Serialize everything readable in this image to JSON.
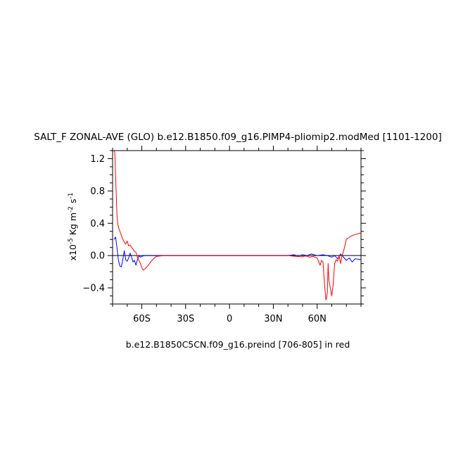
{
  "chart_data": {
    "type": "line",
    "title": "SALT_F ZONAL-AVE (GLO) b.e12.B1850.f09_g16.PIMP4-pliomip2.modMed [1101-1200]",
    "ylabel_prefix": "x10",
    "ylabel_exponent": "-5",
    "ylabel_units": "Kg m",
    "ylabel_units_exp": "-2",
    "ylabel_s": "s",
    "ylabel_s_exp": "-1",
    "xlabel": "b.e12.B1850C5CN.f09_g16.preind [706-805] in red",
    "xlim": [
      -80,
      90
    ],
    "ylim": [
      -0.6,
      1.3
    ],
    "x_ticks": [
      {
        "value": -60,
        "label": "60S"
      },
      {
        "value": -30,
        "label": "30S"
      },
      {
        "value": 0,
        "label": "0"
      },
      {
        "value": 30,
        "label": "30N"
      },
      {
        "value": 60,
        "label": "60N"
      }
    ],
    "y_ticks": [
      {
        "value": 1.2,
        "label": "1.2"
      },
      {
        "value": 0.8,
        "label": "0.8"
      },
      {
        "value": 0.4,
        "label": "0.4"
      },
      {
        "value": 0.0,
        "label": "0.0"
      },
      {
        "value": -0.4,
        "label": "−0.4"
      }
    ],
    "grid": false,
    "series": [
      {
        "color": "#0000ff",
        "x": [
          -79,
          -78,
          -77,
          -76,
          -75,
          -74,
          -73,
          -72,
          -71,
          -70,
          -69,
          -68,
          -67,
          -66,
          -65,
          -64,
          -63,
          -62,
          -61,
          -60,
          -58,
          -55,
          0,
          40,
          44,
          47,
          50,
          53,
          56,
          60,
          64,
          67,
          70,
          72,
          74,
          76,
          78,
          80,
          82,
          84,
          86,
          90
        ],
        "y": [
          0.2,
          0.23,
          0.1,
          -0.06,
          -0.13,
          -0.14,
          -0.05,
          0.06,
          -0.05,
          -0.07,
          -0.03,
          0.03,
          -0.02,
          -0.08,
          -0.06,
          -0.12,
          -0.05,
          0.0,
          -0.02,
          -0.01,
          0.0,
          0.0,
          0.0,
          0.0,
          0.01,
          -0.005,
          0.01,
          0.0,
          0.02,
          0.0,
          0.01,
          0.0,
          -0.02,
          0.0,
          -0.04,
          0.02,
          -0.02,
          -0.06,
          -0.03,
          -0.08,
          -0.04,
          -0.05
        ]
      },
      {
        "color": "#ff0000",
        "x": [
          -79,
          -78.5,
          -78,
          -77.5,
          -77,
          -76.5,
          -76,
          -75,
          -74,
          -73,
          -72,
          -71,
          -70,
          -69,
          -68,
          -67,
          -66,
          -65,
          -64,
          -63,
          -62,
          -61,
          -60,
          -59,
          -58,
          -56,
          -54,
          -52,
          -50,
          -45,
          0,
          40,
          45,
          50,
          52,
          55,
          57,
          60,
          62,
          63,
          64,
          65,
          65.5,
          66,
          66.5,
          67,
          67.5,
          68,
          69,
          70,
          71,
          72,
          73,
          74,
          75,
          76,
          77,
          78,
          80,
          83,
          86,
          90
        ],
        "y": [
          1.3,
          1.28,
          1.0,
          0.75,
          0.5,
          0.4,
          0.35,
          0.3,
          0.25,
          0.2,
          0.17,
          0.14,
          0.18,
          0.12,
          0.13,
          0.1,
          0.08,
          0.05,
          0.04,
          -0.02,
          -0.06,
          -0.1,
          -0.15,
          -0.18,
          -0.17,
          -0.13,
          -0.08,
          -0.04,
          -0.01,
          0.0,
          0.0,
          0.0,
          -0.01,
          -0.015,
          -0.005,
          -0.02,
          -0.01,
          -0.03,
          -0.12,
          -0.06,
          -0.08,
          -0.35,
          -0.45,
          -0.55,
          -0.52,
          -0.45,
          -0.1,
          -0.3,
          -0.4,
          -0.5,
          -0.35,
          -0.1,
          -0.05,
          -0.07,
          0.0,
          -0.1,
          0.0,
          0.05,
          0.2,
          0.24,
          0.26,
          0.28
        ]
      }
    ]
  }
}
